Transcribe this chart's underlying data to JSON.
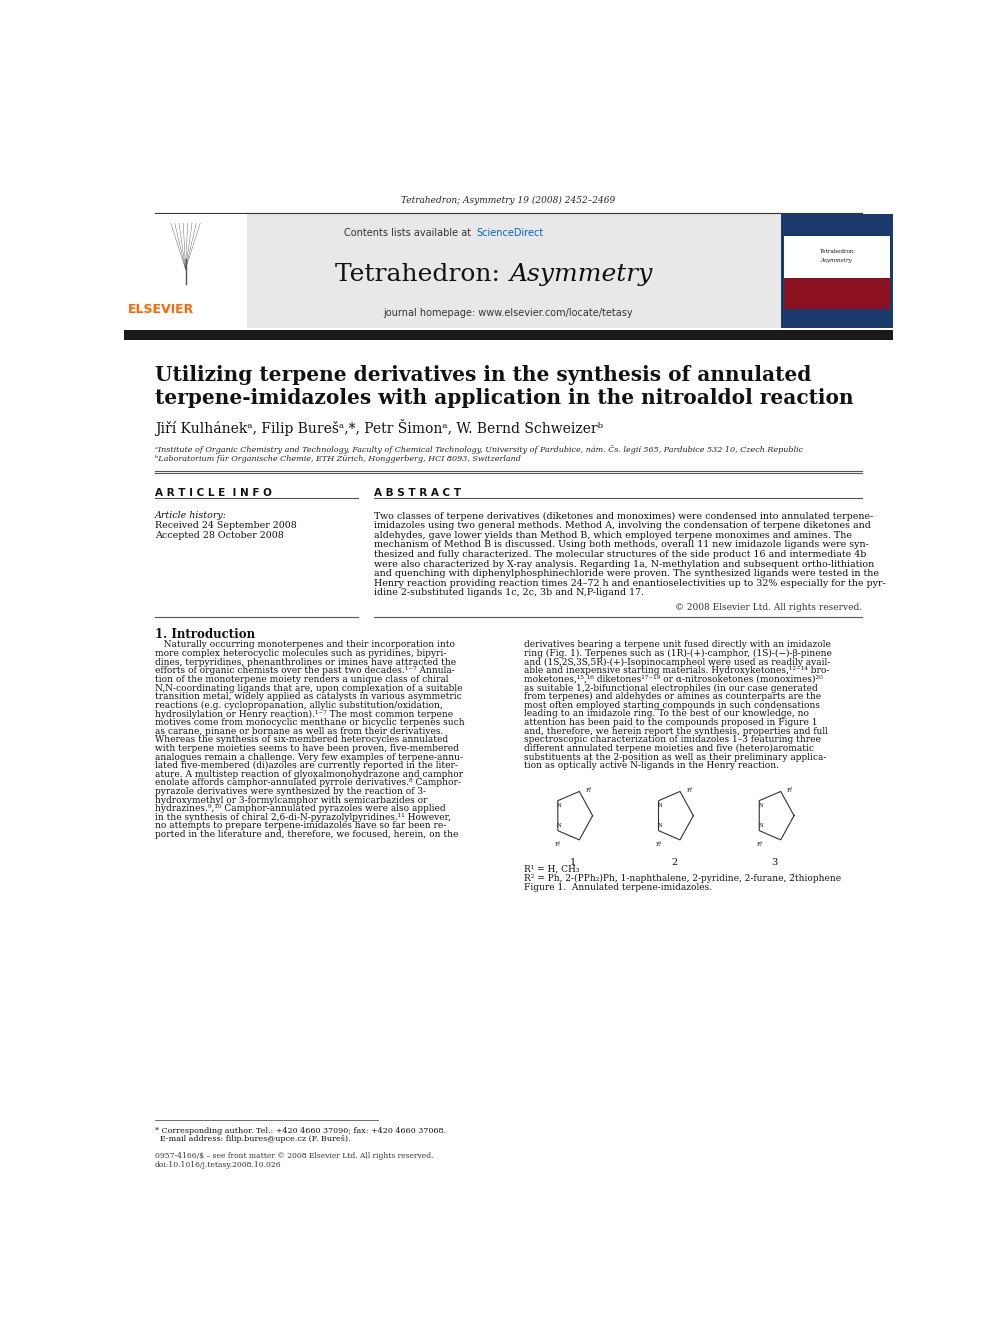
{
  "page_width": 9.92,
  "page_height": 13.23,
  "bg_color": "#ffffff",
  "top_citation": "Tetrahedron; Asymmetry 19 (2008) 2452–2469",
  "journal_homepage": "journal homepage: www.elsevier.com/locate/tetasy",
  "article_title_line1": "Utilizing terpene derivatives in the synthesis of annulated",
  "article_title_line2": "terpene-imidazoles with application in the nitroaldol reaction",
  "authors": "Jiří Kulhánekᵃ, Filip Burešᵃ,*, Petr Šimonᵃ, W. Bernd Schweizerᵇ",
  "affil_a": "ᵃInstitute of Organic Chemistry and Technology, Faculty of Chemical Technology, University of Pardubice, nám. Čs. legií 565, Pardubice 532 10, Czech Republic",
  "affil_b": "ᵇLaboratorium für Organische Chemie, ETH Zürich, Honggerberg, HCI 8093, Switzerland",
  "article_info_header": "A R T I C L E  I N F O",
  "abstract_header": "A B S T R A C T",
  "article_history_label": "Article history:",
  "received_text": "Received 24 September 2008",
  "accepted_text": "Accepted 28 October 2008",
  "copyright_text": "© 2008 Elsevier Ltd. All rights reserved.",
  "intro_header": "1. Introduction",
  "figure1_caption": "Figure 1.  Annulated terpene-imidazoles.",
  "r1_text": "R¹ = H, CH₃",
  "r2_text": "R² = Ph, 2-(PPh₂)Ph, 1-naphthalene, 2-pyridine, 2-furane, 2́thiophene",
  "footnote_line1": "* Corresponding author. Tel.: +420 4660 37090; fax: +420 4660 37068.",
  "footnote_line2": "  E-mail address: filip.bures@upce.cz (F. Bureš).",
  "issn_line1": "0957-4166/$ – see front matter © 2008 Elsevier Ltd. All rights reserved.",
  "issn_line2": "doi:10.1016/j.tetasy.2008.10.026",
  "header_bg_color": "#e8e8e8",
  "dark_bar_color": "#1a1a1a",
  "elsevier_color": "#ff6600",
  "sciencedirect_color": "#0066cc"
}
